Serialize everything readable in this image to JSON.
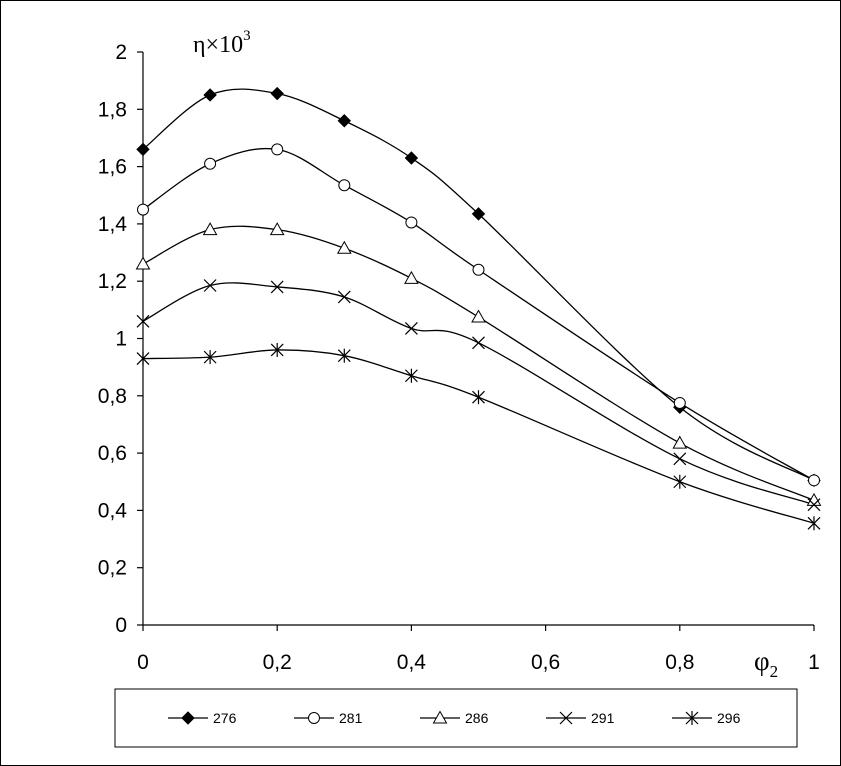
{
  "chart_data": {
    "type": "line",
    "y_axis_title": "η×10",
    "y_axis_title_exponent": "3",
    "x_axis_title": "φ",
    "x_axis_title_subscript": "2",
    "xlim": [
      0,
      1
    ],
    "ylim": [
      0,
      2
    ],
    "x_ticks": [
      0,
      0.2,
      0.4,
      0.6,
      0.8,
      1
    ],
    "x_tick_labels": [
      "0",
      "0,2",
      "0,4",
      "0,6",
      "0,8",
      "1"
    ],
    "y_ticks": [
      0,
      0.2,
      0.4,
      0.6,
      0.8,
      1,
      1.2,
      1.4,
      1.6,
      1.8,
      2
    ],
    "y_tick_labels": [
      "0",
      "0,2",
      "0,4",
      "0,6",
      "0,8",
      "1",
      "1,2",
      "1,4",
      "1,6",
      "1,8",
      "2"
    ],
    "grid": false,
    "legend_position": "bottom",
    "x": [
      0,
      0.1,
      0.2,
      0.3,
      0.4,
      0.5,
      0.8,
      1
    ],
    "series": [
      {
        "name": "276",
        "marker": "filled-diamond",
        "values": [
          1.66,
          1.85,
          1.855,
          1.76,
          1.63,
          1.435,
          0.76,
          0.505
        ]
      },
      {
        "name": "281",
        "marker": "open-circle",
        "values": [
          1.45,
          1.61,
          1.66,
          1.535,
          1.405,
          1.24,
          0.775,
          0.505
        ]
      },
      {
        "name": "286",
        "marker": "open-triangle",
        "values": [
          1.26,
          1.38,
          1.38,
          1.315,
          1.21,
          1.075,
          0.635,
          0.435
        ]
      },
      {
        "name": "291",
        "marker": "x-cross",
        "values": [
          1.06,
          1.185,
          1.18,
          1.145,
          1.035,
          0.985,
          0.58,
          0.42
        ]
      },
      {
        "name": "296",
        "marker": "star",
        "values": [
          0.93,
          0.935,
          0.96,
          0.94,
          0.87,
          0.795,
          0.5,
          0.355
        ]
      }
    ]
  }
}
